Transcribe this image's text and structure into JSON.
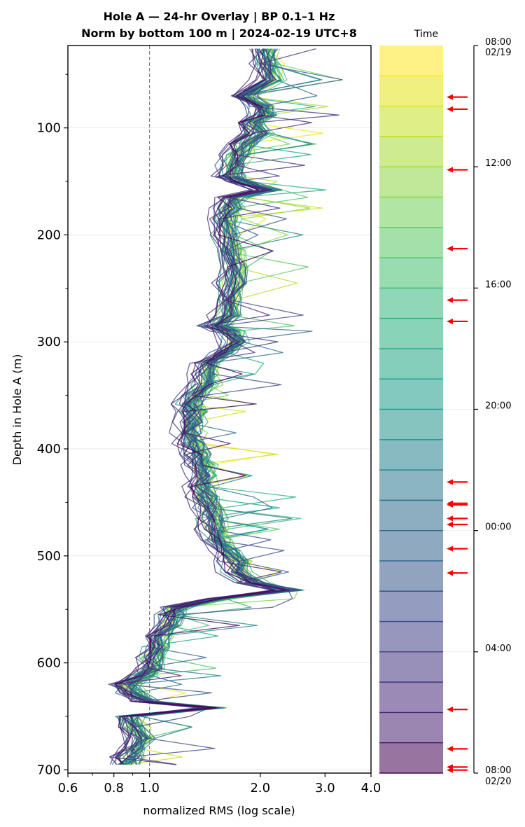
{
  "title": {
    "line1": "Hole A — 24-hr Overlay  |  BP 0.1–1 Hz",
    "line2": "Norm by bottom 100 m  |  2024-02-19 UTC+8"
  },
  "colorbar": {
    "header": "Time",
    "ticks": [
      {
        "hour": 0,
        "line1": "08:00",
        "line2": "02/19"
      },
      {
        "hour": 4,
        "line1": "12:00",
        "line2": ""
      },
      {
        "hour": 8,
        "line1": "16:00",
        "line2": ""
      },
      {
        "hour": 12,
        "line1": "20:00",
        "line2": ""
      },
      {
        "hour": 16,
        "line1": "00:00",
        "line2": ""
      },
      {
        "hour": 20,
        "line1": "04:00",
        "line2": ""
      },
      {
        "hour": 24,
        "line1": "08:00",
        "line2": "02/20"
      }
    ],
    "band_count": 24,
    "colors": [
      "#fde725",
      "#e2e418",
      "#c5e021",
      "#a8db34",
      "#8bd646",
      "#70cf57",
      "#58c765",
      "#44bf70",
      "#33b67a",
      "#28ae80",
      "#21a585",
      "#1f9d8a",
      "#22958b",
      "#26828e",
      "#2a788e",
      "#2f6c8e",
      "#33638d",
      "#38588c",
      "#3d4d8a",
      "#424086",
      "#453581",
      "#472a7a",
      "#482071",
      "#440154"
    ],
    "arrow_hours": [
      1.7,
      2.1,
      4.1,
      6.7,
      8.4,
      9.1,
      14.4,
      15.1,
      15.15,
      15.6,
      15.8,
      16.6,
      17.4,
      21.9,
      23.2,
      23.8,
      23.9
    ]
  },
  "chart_data": {
    "type": "line",
    "xlabel": "normalized RMS  (log scale)",
    "ylabel": "Depth in Hole A (m)",
    "x_scale": "log",
    "xlim": [
      0.6,
      4.0
    ],
    "ylim": [
      703,
      23
    ],
    "x_ticks": [
      {
        "value": 0.6,
        "label": "0.6"
      },
      {
        "value": 0.8,
        "label": "0.8"
      },
      {
        "value": 1.0,
        "label": "1.0"
      },
      {
        "value": 2.0,
        "label": "2.0"
      },
      {
        "value": 3.0,
        "label": "3.0"
      },
      {
        "value": 4.0,
        "label": "4.0"
      }
    ],
    "y_ticks": [
      {
        "value": 100,
        "label": "100"
      },
      {
        "value": 200,
        "label": "200"
      },
      {
        "value": 300,
        "label": "300"
      },
      {
        "value": 400,
        "label": "400"
      },
      {
        "value": 500,
        "label": "500"
      },
      {
        "value": 600,
        "label": "600"
      },
      {
        "value": 700,
        "label": "700"
      }
    ],
    "grid": "horizontal",
    "reference_line_x": 1.0,
    "series_count": 48,
    "depth": [
      26,
      40,
      55,
      70,
      80,
      88,
      95,
      105,
      115,
      125,
      135,
      145,
      150,
      158,
      165,
      175,
      185,
      200,
      215,
      230,
      245,
      260,
      275,
      285,
      290,
      300,
      310,
      320,
      330,
      340,
      350,
      358,
      365,
      375,
      385,
      395,
      405,
      415,
      425,
      435,
      445,
      455,
      465,
      475,
      485,
      495,
      505,
      515,
      525,
      532,
      540,
      548,
      555,
      565,
      575,
      585,
      595,
      605,
      612,
      620,
      628,
      636,
      642,
      650,
      660,
      670,
      680,
      688,
      695
    ],
    "median_rms": [
      2.05,
      2.1,
      2.12,
      1.8,
      2.0,
      2.05,
      1.9,
      1.95,
      1.8,
      1.72,
      1.68,
      1.65,
      1.75,
      2.1,
      1.68,
      1.65,
      1.6,
      1.62,
      1.65,
      1.7,
      1.68,
      1.66,
      1.62,
      1.5,
      1.65,
      1.72,
      1.6,
      1.45,
      1.4,
      1.42,
      1.32,
      1.28,
      1.32,
      1.3,
      1.28,
      1.3,
      1.35,
      1.38,
      1.4,
      1.38,
      1.4,
      1.45,
      1.48,
      1.5,
      1.52,
      1.62,
      1.7,
      1.72,
      1.9,
      2.4,
      1.55,
      1.2,
      1.15,
      1.12,
      1.06,
      1.04,
      1.02,
      1.0,
      0.95,
      0.86,
      0.9,
      0.98,
      1.5,
      0.88,
      0.9,
      0.95,
      0.9,
      0.88,
      0.86
    ]
  }
}
